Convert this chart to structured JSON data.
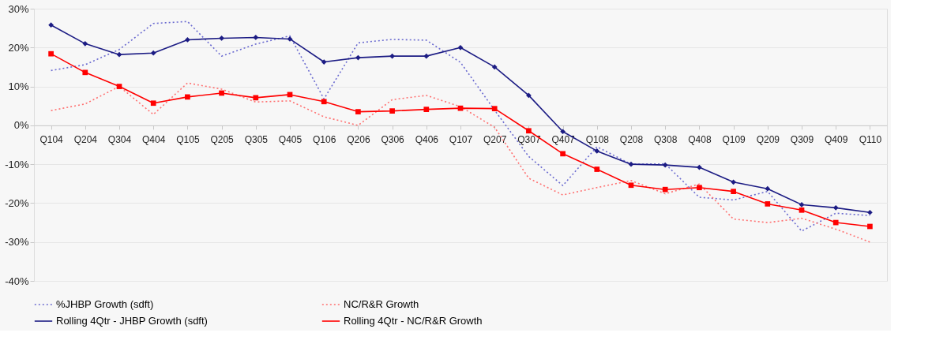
{
  "chart_data": {
    "type": "line",
    "categories": [
      "Q104",
      "Q204",
      "Q304",
      "Q404",
      "Q105",
      "Q205",
      "Q305",
      "Q405",
      "Q106",
      "Q206",
      "Q306",
      "Q406",
      "Q107",
      "Q207",
      "Q307",
      "Q407",
      "Q108",
      "Q208",
      "Q308",
      "Q408",
      "Q109",
      "Q209",
      "Q309",
      "Q409",
      "Q110"
    ],
    "series": [
      {
        "name": "%JHBP Growth (sdft)",
        "color": "#6b6bd0",
        "line_style": "dotted",
        "marker": "none",
        "values": [
          14.1,
          15.6,
          19.5,
          26.2,
          26.7,
          17.8,
          20.9,
          23,
          6.8,
          21.2,
          22.1,
          21.9,
          16.2,
          3.9,
          -8,
          -15.5,
          -5.5,
          -10,
          -9.9,
          -18.5,
          -19.2,
          -17,
          -27.2,
          -22.6,
          -23.2
        ]
      },
      {
        "name": "NC/R&R Growth",
        "color": "#ff7070",
        "line_style": "dotted",
        "marker": "none",
        "values": [
          3.8,
          5.5,
          10,
          2.8,
          10.9,
          9.3,
          6,
          6.3,
          2.2,
          0,
          6.6,
          7.7,
          4.8,
          -0.5,
          -13.6,
          -17.9,
          -16,
          -14.2,
          -17.6,
          -15.1,
          -24.1,
          -25,
          -23.9,
          -26.7,
          -30
        ]
      },
      {
        "name": "Rolling 4Qtr - JHBP Growth (sdft)",
        "color": "#1c1c84",
        "line_style": "solid",
        "marker": "diamond",
        "values": [
          25.8,
          21,
          18.2,
          18.6,
          22,
          22.4,
          22.6,
          22.2,
          16.3,
          17.4,
          17.8,
          17.8,
          20,
          15,
          7.7,
          -1.6,
          -6.6,
          -10,
          -10.2,
          -10.8,
          -14.6,
          -16.3,
          -20.4,
          -21.2,
          -22.4
        ]
      },
      {
        "name": "Rolling 4Qtr - NC/R&R Growth",
        "color": "#ff0000",
        "line_style": "solid",
        "marker": "square",
        "values": [
          18.4,
          13.6,
          10,
          5.7,
          7.3,
          8.3,
          7.1,
          7.9,
          6.1,
          3.5,
          3.7,
          4.1,
          4.4,
          4.3,
          -1.4,
          -7.3,
          -11.3,
          -15.4,
          -16.5,
          -16,
          -17,
          -20.2,
          -21.8,
          -25,
          -26
        ]
      }
    ],
    "ylim": [
      -40,
      30
    ],
    "yticks": [
      {
        "value": -40,
        "label": "-40%"
      },
      {
        "value": -30,
        "label": "-30%"
      },
      {
        "value": -20,
        "label": "-20%"
      },
      {
        "value": -10,
        "label": "-10%"
      },
      {
        "value": 0,
        "label": "0%"
      },
      {
        "value": 10,
        "label": "10%"
      },
      {
        "value": 20,
        "label": "20%"
      },
      {
        "value": 30,
        "label": "30%"
      }
    ],
    "grid": "y",
    "legend": "bottom"
  }
}
